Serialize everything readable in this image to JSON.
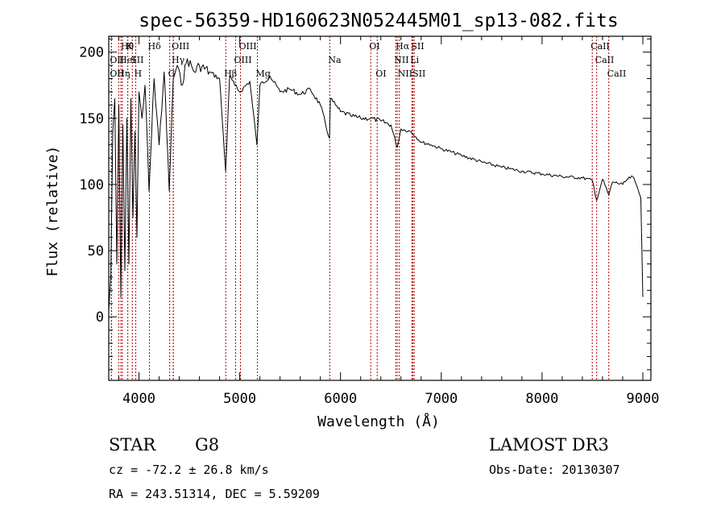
{
  "chart_data": {
    "type": "line",
    "title": "spec-56359-HD160623N052445M01_sp13-082.fits",
    "xlabel": "Wavelength (Å)",
    "ylabel": "Flux (relative)",
    "xlim": [
      3700,
      9080
    ],
    "ylim": [
      -48,
      212
    ],
    "x_ticks": [
      4000,
      5000,
      6000,
      7000,
      8000,
      9000
    ],
    "y_ticks": [
      0,
      50,
      100,
      150,
      200
    ],
    "series": [
      {
        "name": "flux",
        "x": [
          3700,
          3720,
          3740,
          3760,
          3780,
          3800,
          3820,
          3840,
          3860,
          3880,
          3900,
          3920,
          3940,
          3960,
          3980,
          4000,
          4030,
          4060,
          4100,
          4150,
          4200,
          4250,
          4300,
          4340,
          4380,
          4420,
          4480,
          4550,
          4600,
          4700,
          4800,
          4860,
          4900,
          4950,
          5000,
          5100,
          5170,
          5200,
          5300,
          5400,
          5500,
          5600,
          5700,
          5800,
          5890,
          5900,
          5950,
          6000,
          6100,
          6200,
          6300,
          6400,
          6500,
          6563,
          6600,
          6700,
          6800,
          6900,
          7000,
          7200,
          7400,
          7600,
          7800,
          8000,
          8200,
          8400,
          8500,
          8542,
          8600,
          8662,
          8700,
          8800,
          8850,
          8900,
          8950,
          8980,
          9000
        ],
        "values": [
          5,
          30,
          140,
          165,
          40,
          160,
          15,
          145,
          35,
          150,
          40,
          165,
          75,
          140,
          60,
          170,
          150,
          175,
          95,
          180,
          130,
          185,
          95,
          180,
          190,
          175,
          195,
          185,
          190,
          185,
          180,
          110,
          182,
          175,
          170,
          178,
          130,
          175,
          182,
          170,
          172,
          168,
          172,
          160,
          135,
          165,
          160,
          155,
          152,
          150,
          150,
          148,
          145,
          128,
          142,
          140,
          132,
          130,
          127,
          122,
          117,
          113,
          110,
          108,
          106,
          105,
          103,
          88,
          104,
          92,
          102,
          100,
          104,
          106,
          97,
          90,
          15
        ]
      }
    ],
    "lines_top": [
      {
        "wl": 3835,
        "label": "Hθ"
      },
      {
        "wl": 3889,
        "label": "K"
      },
      {
        "wl": 4104,
        "label": "Hδ"
      },
      {
        "wl": 4341,
        "label": "OIII"
      },
      {
        "wl": 5007,
        "label": "OIII"
      },
      {
        "wl": 6300,
        "label": "OI"
      },
      {
        "wl": 6563,
        "label": "Hα"
      },
      {
        "wl": 6717,
        "label": "SII"
      },
      {
        "wl": 8498,
        "label": "CaII"
      }
    ],
    "lines_mid": [
      {
        "wl": 3727,
        "label": "OII"
      },
      {
        "wl": 3820,
        "label": "HeI"
      },
      {
        "wl": 3934,
        "label": "SII"
      },
      {
        "wl": 4340,
        "label": "Hγ"
      },
      {
        "wl": 4959,
        "label": "OIII"
      },
      {
        "wl": 5893,
        "label": "Na"
      },
      {
        "wl": 6548,
        "label": "NII"
      },
      {
        "wl": 6708,
        "label": "Li"
      },
      {
        "wl": 8542,
        "label": "CaII"
      }
    ],
    "lines_low": [
      {
        "wl": 3727,
        "label": "OII"
      },
      {
        "wl": 3798,
        "label": "Hη"
      },
      {
        "wl": 3968,
        "label": "H"
      },
      {
        "wl": 4305,
        "label": "G"
      },
      {
        "wl": 4861,
        "label": "Hβ"
      },
      {
        "wl": 5175,
        "label": "Mg"
      },
      {
        "wl": 6364,
        "label": "OI"
      },
      {
        "wl": 6584,
        "label": "NII"
      },
      {
        "wl": 6731,
        "label": "SII"
      },
      {
        "wl": 8662,
        "label": "CaII"
      }
    ],
    "colors": {
      "spectrum": "#000000",
      "line_markers": "#b00000",
      "axes": "#000000"
    }
  },
  "info": {
    "object_class": "STAR",
    "subclass": "G8",
    "survey": "LAMOST DR3",
    "cz": "cz = -72.2 ± 26.8 km/s",
    "obs_date": "Obs-Date: 20130307",
    "coords": "RA = 243.51314, DEC =   5.59209"
  }
}
